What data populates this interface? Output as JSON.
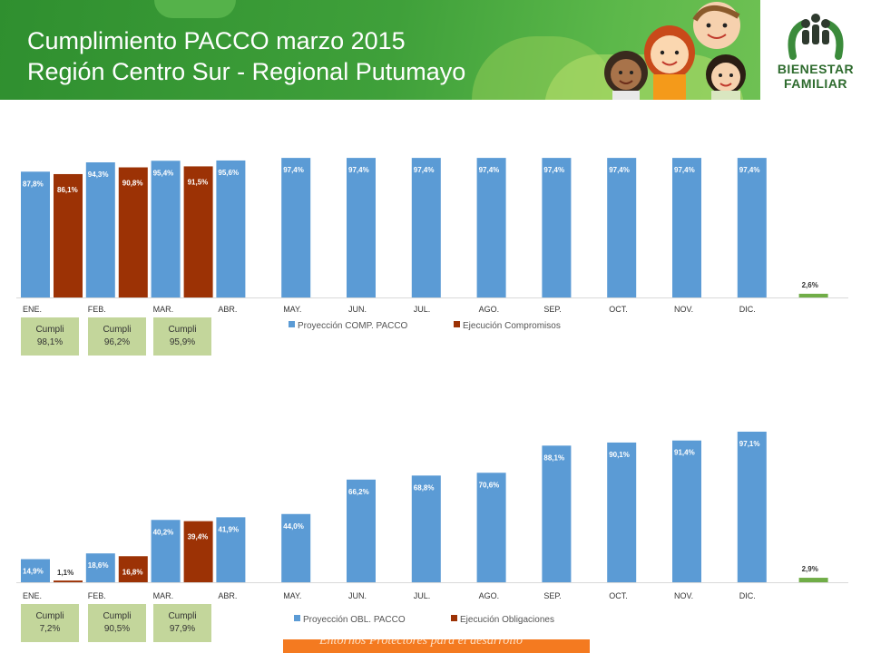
{
  "header": {
    "title_line1": "Cumplimiento PACCO marzo 2015",
    "title_line2": "Región Centro Sur - Regional Putumayo",
    "logo_line1": "BIENESTAR",
    "logo_line2": "FAMILIAR"
  },
  "colors": {
    "projection": "#5b9bd5",
    "execution": "#9c3205",
    "highlight": "#70ad47",
    "cumpli_box": "#c3d69b"
  },
  "chart_data": [
    {
      "type": "bar",
      "categories": [
        "ENE.",
        "FEB.",
        "MAR.",
        "ABR.",
        "MAY.",
        "JUN.",
        "JUL.",
        "AGO.",
        "SEP.",
        "OCT.",
        "NOV.",
        "DIC.",
        ""
      ],
      "series": [
        {
          "name": "Proyección COMP. PACCO",
          "values": [
            87.8,
            94.3,
            95.4,
            95.6,
            97.4,
            97.4,
            97.4,
            97.4,
            97.4,
            97.4,
            97.4,
            97.4,
            null
          ]
        },
        {
          "name": "Ejecución Compromisos",
          "values": [
            86.1,
            90.8,
            91.5,
            null,
            null,
            null,
            null,
            null,
            null,
            null,
            null,
            null,
            null
          ]
        }
      ],
      "labels": [
        [
          "87,8%",
          "94,3%",
          "95,4%",
          "95,6%",
          "97,4%",
          "97,4%",
          "97,4%",
          "97,4%",
          "97,4%",
          "97,4%",
          "97,4%",
          "97,4%",
          ""
        ],
        [
          "86,1%",
          "90,8%",
          "91,5%",
          "",
          "",
          "",
          "",
          "",
          "",
          "",
          "",
          "",
          ""
        ]
      ],
      "extra_bar": {
        "value": 2.6,
        "label": "2,6%"
      },
      "ylim": [
        0,
        100
      ],
      "legend_position": "bottom-center",
      "cumpli": [
        {
          "label": "Cumpli",
          "value": "98,1%"
        },
        {
          "label": "Cumpli",
          "value": "96,2%"
        },
        {
          "label": "Cumpli",
          "value": "95,9%"
        }
      ]
    },
    {
      "type": "bar",
      "categories": [
        "ENE.",
        "FEB.",
        "MAR.",
        "ABR.",
        "MAY.",
        "JUN.",
        "JUL.",
        "AGO.",
        "SEP.",
        "OCT.",
        "NOV.",
        "DIC.",
        ""
      ],
      "series": [
        {
          "name": "Proyección OBL. PACCO",
          "values": [
            14.9,
            18.6,
            40.2,
            41.9,
            44.0,
            66.2,
            68.8,
            70.6,
            88.1,
            90.1,
            91.4,
            97.1,
            null
          ]
        },
        {
          "name": "Ejecución Obligaciones",
          "values": [
            1.1,
            16.8,
            39.4,
            null,
            null,
            null,
            null,
            null,
            null,
            null,
            null,
            null,
            null
          ]
        }
      ],
      "labels": [
        [
          "14,9%",
          "18,6%",
          "40,2%",
          "41,9%",
          "44,0%",
          "66,2%",
          "68,8%",
          "70,6%",
          "88,1%",
          "90,1%",
          "91,4%",
          "97,1%",
          ""
        ],
        [
          "1,1%",
          "16,8%",
          "39,4%",
          "",
          "",
          "",
          "",
          "",
          "",
          "",
          "",
          "",
          ""
        ]
      ],
      "extra_bar": {
        "value": 2.9,
        "label": "2,9%"
      },
      "ylim": [
        0,
        100
      ],
      "legend_position": "bottom-center",
      "cumpli": [
        {
          "label": "Cumpli",
          "value": "7,2%"
        },
        {
          "label": "Cumpli",
          "value": "90,5%"
        },
        {
          "label": "Cumpli",
          "value": "97,9%"
        }
      ]
    }
  ],
  "footer": {
    "text": "Entornos Protectores para el desarrollo"
  }
}
